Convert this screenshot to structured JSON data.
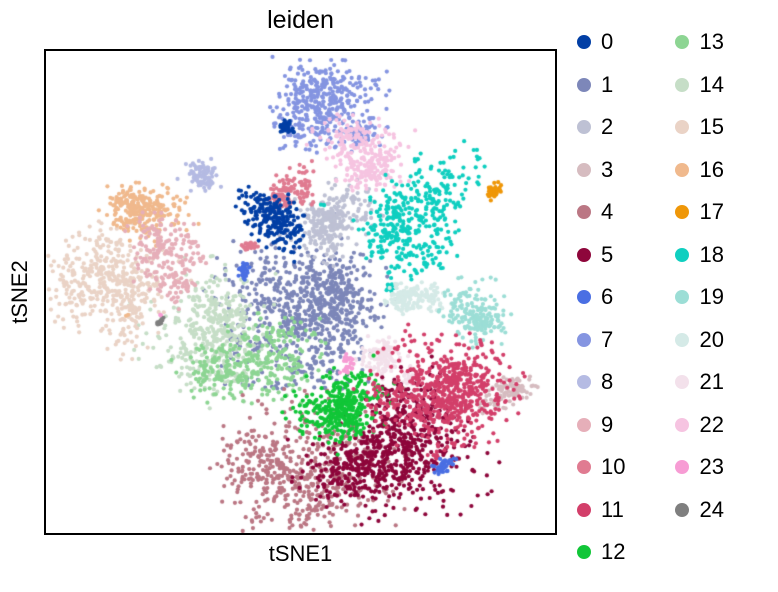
{
  "chart_data": {
    "type": "scatter",
    "title": "leiden",
    "xlabel": "tSNE1",
    "ylabel": "tSNE2",
    "axes_style": "closed frame, no ticks, no tick labels",
    "grid": false,
    "legend_position": "right side, two columns, round color swatches",
    "legend_columns": [
      [
        "0",
        "1",
        "2",
        "3",
        "4",
        "5",
        "6",
        "7",
        "8",
        "9",
        "10",
        "11",
        "12"
      ],
      [
        "13",
        "14",
        "15",
        "16",
        "17",
        "18",
        "19",
        "20",
        "21",
        "22",
        "23",
        "24"
      ]
    ],
    "palette_name_hint": "zeileis_28 (scanpy default for 21-28 categories)",
    "draw_order": [
      1,
      2,
      7,
      22,
      14,
      15,
      16,
      8,
      9,
      13,
      18,
      20,
      19,
      21,
      3,
      4,
      5,
      12,
      11,
      10,
      0,
      6,
      17,
      23,
      24
    ],
    "series": [
      {
        "label": "0",
        "color": "#023fa5",
        "blobs": [
          {
            "cx": 0.444,
            "cy": 0.352,
            "rx": 0.051,
            "ry": 0.051,
            "n": 230
          },
          {
            "cx": 0.478,
            "cy": 0.165,
            "rx": 0.016,
            "ry": 0.017,
            "n": 35
          }
        ]
      },
      {
        "label": "1",
        "color": "#7d87b9",
        "blobs": [
          {
            "cx": 0.499,
            "cy": 0.517,
            "rx": 0.105,
            "ry": 0.1,
            "n": 800
          }
        ]
      },
      {
        "label": "2",
        "color": "#bec1d4",
        "blobs": [
          {
            "cx": 0.558,
            "cy": 0.372,
            "rx": 0.058,
            "ry": 0.066,
            "n": 300
          }
        ]
      },
      {
        "label": "3",
        "color": "#d6bcc0",
        "blobs": [
          {
            "cx": 0.912,
            "cy": 0.706,
            "rx": 0.052,
            "ry": 0.026,
            "n": 100,
            "angle": -8
          }
        ]
      },
      {
        "label": "4",
        "color": "#bb7784",
        "blobs": [
          {
            "cx": 0.519,
            "cy": 0.877,
            "rx": 0.105,
            "ry": 0.1,
            "n": 550
          }
        ]
      },
      {
        "label": "5",
        "color": "#8e063b",
        "blobs": [
          {
            "cx": 0.675,
            "cy": 0.846,
            "rx": 0.115,
            "ry": 0.091,
            "n": 750,
            "angle": -20
          }
        ]
      },
      {
        "label": "6",
        "color": "#4a6fe3",
        "blobs": [
          {
            "cx": 0.392,
            "cy": 0.463,
            "rx": 0.015,
            "ry": 0.014,
            "n": 30
          },
          {
            "cx": 0.778,
            "cy": 0.858,
            "rx": 0.021,
            "ry": 0.017,
            "n": 45
          }
        ]
      },
      {
        "label": "7",
        "color": "#8595e1",
        "blobs": [
          {
            "cx": 0.548,
            "cy": 0.101,
            "rx": 0.072,
            "ry": 0.06,
            "n": 420
          },
          {
            "cx": 0.597,
            "cy": 0.169,
            "rx": 0.024,
            "ry": 0.022,
            "n": 45
          }
        ]
      },
      {
        "label": "8",
        "color": "#b5bbe3",
        "blobs": [
          {
            "cx": 0.298,
            "cy": 0.27,
            "rx": 0.034,
            "ry": 0.028,
            "n": 90
          }
        ]
      },
      {
        "label": "9",
        "color": "#e6afb9",
        "blobs": [
          {
            "cx": 0.25,
            "cy": 0.438,
            "rx": 0.053,
            "ry": 0.06,
            "n": 220
          }
        ]
      },
      {
        "label": "10",
        "color": "#e07b91",
        "blobs": [
          {
            "cx": 0.482,
            "cy": 0.27,
            "rx": 0.03,
            "ry": 0.04,
            "n": 130
          },
          {
            "cx": 0.392,
            "cy": 0.416,
            "rx": 0.015,
            "ry": 0.013,
            "n": 25
          }
        ]
      },
      {
        "label": "11",
        "color": "#d33f6a",
        "blobs": [
          {
            "cx": 0.772,
            "cy": 0.702,
            "rx": 0.094,
            "ry": 0.08,
            "n": 650,
            "angle": -15
          },
          {
            "cx": 0.852,
            "cy": 0.603,
            "rx": 0.006,
            "ry": 0.006,
            "n": 4
          },
          {
            "cx": 0.766,
            "cy": 0.84,
            "rx": 0.008,
            "ry": 0.007,
            "n": 8
          }
        ]
      },
      {
        "label": "12",
        "color": "#11c638",
        "blobs": [
          {
            "cx": 0.593,
            "cy": 0.753,
            "rx": 0.072,
            "ry": 0.06,
            "n": 380,
            "angle": -15
          }
        ]
      },
      {
        "label": "13",
        "color": "#8dd593",
        "blobs": [
          {
            "cx": 0.411,
            "cy": 0.65,
            "rx": 0.086,
            "ry": 0.06,
            "n": 330,
            "angle": -10
          }
        ]
      },
      {
        "label": "14",
        "color": "#c6dec7",
        "blobs": [
          {
            "cx": 0.324,
            "cy": 0.578,
            "rx": 0.086,
            "ry": 0.097,
            "n": 420
          }
        ]
      },
      {
        "label": "15",
        "color": "#ead3c6",
        "blobs": [
          {
            "cx": 0.119,
            "cy": 0.496,
            "rx": 0.08,
            "ry": 0.091,
            "n": 470,
            "angle": 25
          }
        ]
      },
      {
        "label": "16",
        "color": "#f0b98d",
        "blobs": [
          {
            "cx": 0.199,
            "cy": 0.342,
            "rx": 0.062,
            "ry": 0.053,
            "n": 270
          },
          {
            "cx": 0.16,
            "cy": 0.549,
            "rx": 0.003,
            "ry": 0.003,
            "n": 2
          }
        ]
      },
      {
        "label": "17",
        "color": "#ef9708",
        "blobs": [
          {
            "cx": 0.883,
            "cy": 0.292,
            "rx": 0.017,
            "ry": 0.019,
            "n": 45
          }
        ]
      },
      {
        "label": "18",
        "color": "#0fcfc0",
        "blobs": [
          {
            "cx": 0.719,
            "cy": 0.331,
            "rx": 0.076,
            "ry": 0.076,
            "n": 400
          },
          {
            "cx": 0.682,
            "cy": 0.492,
            "rx": 0.009,
            "ry": 0.011,
            "n": 15,
            "angle": -40
          },
          {
            "cx": 0.542,
            "cy": 0.319,
            "rx": 0.004,
            "ry": 0.004,
            "n": 3
          }
        ]
      },
      {
        "label": "19",
        "color": "#9cded6",
        "blobs": [
          {
            "cx": 0.864,
            "cy": 0.533,
            "rx": 0.05,
            "ry": 0.058,
            "n": 190
          }
        ]
      },
      {
        "label": "20",
        "color": "#d5eae7",
        "blobs": [
          {
            "cx": 0.733,
            "cy": 0.512,
            "rx": 0.04,
            "ry": 0.032,
            "n": 170
          }
        ]
      },
      {
        "label": "21",
        "color": "#f3e1eb",
        "blobs": [
          {
            "cx": 0.665,
            "cy": 0.63,
            "rx": 0.047,
            "ry": 0.033,
            "n": 140
          }
        ]
      },
      {
        "label": "22",
        "color": "#f6c4e1",
        "blobs": [
          {
            "cx": 0.62,
            "cy": 0.237,
            "rx": 0.064,
            "ry": 0.056,
            "n": 280
          }
        ]
      },
      {
        "label": "23",
        "color": "#f79cd4",
        "blobs": [
          {
            "cx": 0.6,
            "cy": 0.656,
            "rx": 0.016,
            "ry": 0.016,
            "n": 35
          },
          {
            "cx": 0.228,
            "cy": 0.551,
            "rx": 0.003,
            "ry": 0.003,
            "n": 2
          }
        ]
      },
      {
        "label": "24",
        "color": "#7f7f7f",
        "blobs": [
          {
            "cx": 0.216,
            "cy": 0.562,
            "rx": 0.013,
            "ry": 0.005,
            "n": 14,
            "angle": -35
          }
        ]
      }
    ]
  },
  "colors": {
    "frame": "#000000",
    "background": "#ffffff",
    "text": "#000000"
  }
}
